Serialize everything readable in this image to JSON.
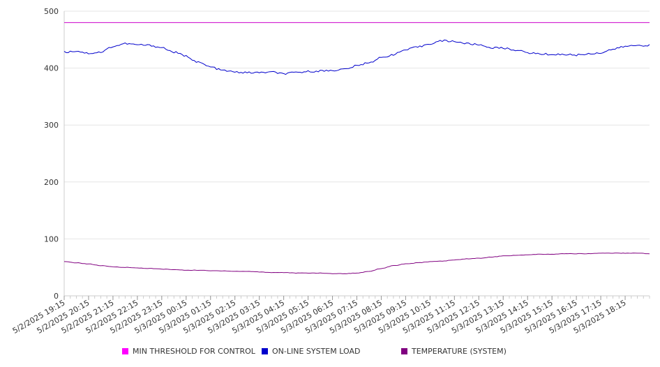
{
  "chart_data": {
    "type": "line",
    "xlabel": "",
    "ylabel": "",
    "ylim": [
      0,
      500
    ],
    "yticks": [
      0,
      100,
      200,
      300,
      400,
      500
    ],
    "xtick_labels": [
      "5/2/2025 19:15",
      "5/2/2025 20:15",
      "5/2/2025 21:15",
      "5/2/2025 22:15",
      "5/2/2025 23:15",
      "5/3/2025 00:15",
      "5/3/2025 01:15",
      "5/3/2025 02:15",
      "5/3/2025 03:15",
      "5/3/2025 04:15",
      "5/3/2025 05:15",
      "5/3/2025 06:15",
      "5/3/2025 07:15",
      "5/3/2025 08:15",
      "5/3/2025 09:15",
      "5/3/2025 10:15",
      "5/3/2025 11:15",
      "5/3/2025 12:15",
      "5/3/2025 13:15",
      "5/3/2025 14:15",
      "5/3/2025 15:15",
      "5/3/2025 16:15",
      "5/3/2025 17:15",
      "5/3/2025 18:15"
    ],
    "x_hours": [
      0,
      0.5,
      1,
      1.5,
      2,
      2.5,
      3,
      3.5,
      4,
      4.5,
      5,
      5.5,
      6,
      6.5,
      7,
      7.5,
      8,
      8.5,
      9,
      9.5,
      10,
      10.5,
      11,
      11.5,
      12,
      12.5,
      13,
      13.5,
      14,
      14.5,
      15,
      15.5,
      16,
      16.5,
      17,
      17.5,
      18,
      18.5,
      19,
      19.5,
      20,
      20.5,
      21,
      21.5,
      22,
      22.5,
      23,
      23.5,
      24
    ],
    "series": [
      {
        "name": "MIN THRESHOLD FOR CONTROL",
        "color": "#cc00cc",
        "values": [
          480,
          480,
          480,
          480,
          480,
          480,
          480,
          480,
          480,
          480,
          480,
          480,
          480,
          480,
          480,
          480,
          480,
          480,
          480,
          480,
          480,
          480,
          480,
          480,
          480,
          480,
          480,
          480,
          480,
          480,
          480,
          480,
          480,
          480,
          480,
          480,
          480,
          480,
          480,
          480,
          480,
          480,
          480,
          480,
          480,
          480,
          480,
          480,
          480
        ]
      },
      {
        "name": "ON-LINE SYSTEM LOAD",
        "color": "#0000cc",
        "values": [
          428,
          430,
          426,
          428,
          438,
          443,
          441,
          440,
          436,
          428,
          421,
          410,
          402,
          396,
          393,
          392,
          392,
          393,
          390,
          392,
          394,
          395,
          396,
          398,
          404,
          410,
          418,
          424,
          432,
          437,
          443,
          448,
          447,
          443,
          441,
          436,
          435,
          432,
          427,
          425,
          424,
          424,
          423,
          425,
          427,
          433,
          438,
          440,
          440
        ]
      },
      {
        "name": "TEMPERATURE (SYSTEM)",
        "color": "#800080",
        "values": [
          60,
          58,
          56,
          53,
          51,
          50,
          49,
          48,
          47,
          46,
          45,
          45,
          44,
          44,
          43,
          43,
          42,
          41,
          41,
          40,
          40,
          40,
          39,
          39,
          40,
          43,
          48,
          53,
          56,
          58,
          60,
          61,
          63,
          65,
          66,
          68,
          70,
          71,
          72,
          73,
          73,
          74,
          74,
          74,
          75,
          75,
          75,
          75,
          74
        ]
      }
    ],
    "grid": "horizontal",
    "legend_position": "bottom"
  }
}
